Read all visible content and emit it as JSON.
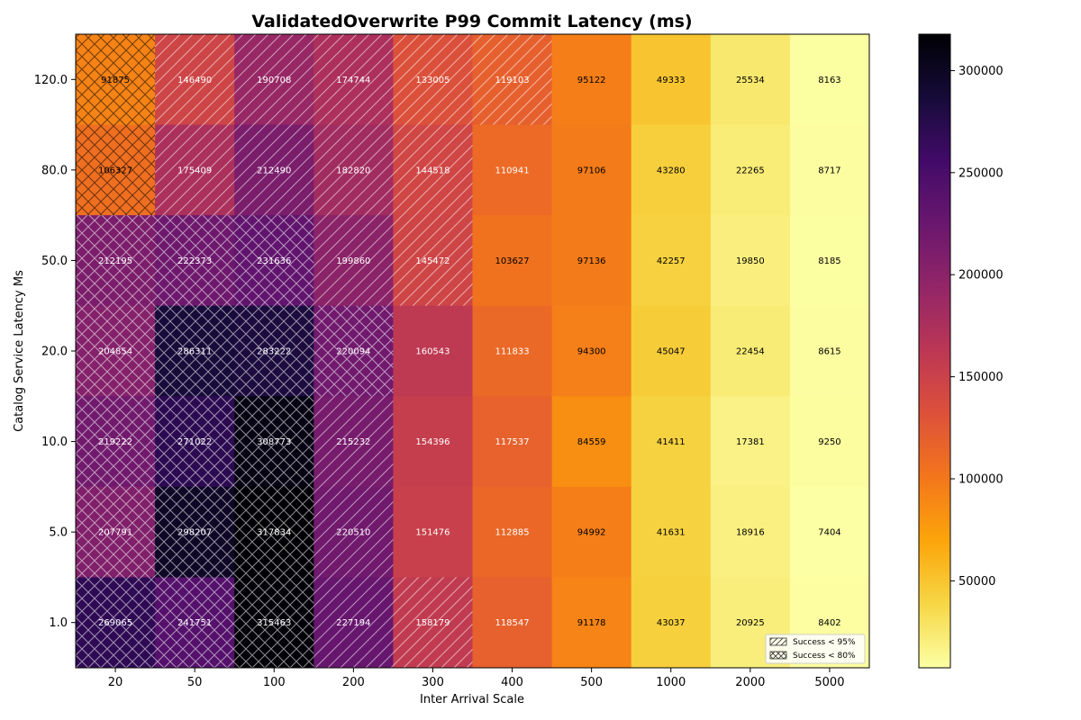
{
  "chart_data": {
    "type": "heatmap",
    "title": "ValidatedOverwrite P99 Commit Latency (ms)",
    "xlabel": "Inter Arrival Scale",
    "ylabel": "Catalog Service Latency Ms",
    "x_categories": [
      "20",
      "50",
      "100",
      "200",
      "300",
      "400",
      "500",
      "1000",
      "2000",
      "5000"
    ],
    "y_categories": [
      "120.0",
      "80.0",
      "50.0",
      "20.0",
      "10.0",
      "5.0",
      "1.0"
    ],
    "values": [
      [
        91875,
        146490,
        190708,
        174744,
        133005,
        119103,
        95122,
        49333,
        25534,
        8163
      ],
      [
        106327,
        175409,
        212490,
        182820,
        144518,
        110941,
        97106,
        43280,
        22265,
        8717
      ],
      [
        212195,
        222373,
        231636,
        199860,
        145472,
        103627,
        97136,
        42257,
        19850,
        8185
      ],
      [
        204854,
        286311,
        283222,
        220094,
        160543,
        111833,
        94300,
        45047,
        22454,
        8615
      ],
      [
        219222,
        271022,
        308773,
        215232,
        154396,
        117537,
        84559,
        41411,
        17381,
        9250
      ],
      [
        207791,
        298207,
        317834,
        220510,
        151476,
        112885,
        94992,
        41631,
        18916,
        7404
      ],
      [
        269065,
        241751,
        315463,
        227194,
        158179,
        118547,
        91178,
        43037,
        20925,
        8402
      ]
    ],
    "hatch": [
      [
        "x",
        "/",
        "/",
        "/",
        "/",
        "/",
        "",
        "",
        "",
        ""
      ],
      [
        "x",
        "/",
        "/",
        "/",
        "/",
        "",
        "",
        "",
        "",
        ""
      ],
      [
        "x",
        "x",
        "x",
        "/",
        "/",
        "",
        "",
        "",
        "",
        ""
      ],
      [
        "x",
        "x",
        "x",
        "x",
        "",
        "",
        "",
        "",
        "",
        ""
      ],
      [
        "x",
        "x",
        "x",
        "/",
        "",
        "",
        "",
        "",
        "",
        ""
      ],
      [
        "x",
        "x",
        "x",
        "/",
        "",
        "",
        "",
        "",
        "",
        ""
      ],
      [
        "x",
        "x",
        "x",
        "/",
        "/",
        "",
        "",
        "",
        "",
        ""
      ]
    ],
    "colormap": "inferno_r",
    "vmin": 7404,
    "vmax": 317834,
    "colorbar_ticks": [
      "50000",
      "100000",
      "150000",
      "200000",
      "250000",
      "300000"
    ],
    "colorbar_tick_values": [
      50000,
      100000,
      150000,
      200000,
      250000,
      300000
    ],
    "legend": {
      "position": "lower-right",
      "entries": [
        {
          "label": "Success < 95%",
          "hatch": "/"
        },
        {
          "label": "Success < 80%",
          "hatch": "x"
        }
      ]
    }
  }
}
